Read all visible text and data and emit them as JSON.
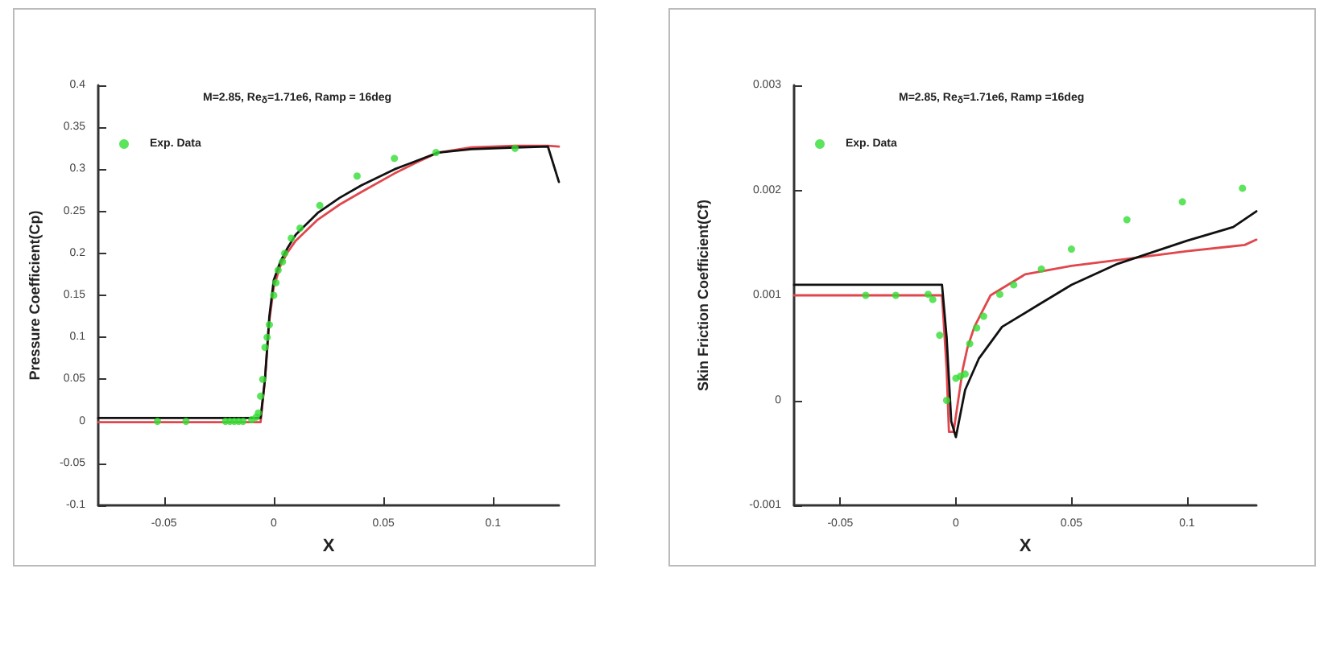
{
  "chart_data": [
    {
      "type": "line",
      "title": "M=2.85, Re$_{δ}$=1.71e6, Ramp = 16deg",
      "xlabel": "X",
      "ylabel": "Pressure Coefficient(Cp)",
      "xlim": [
        -0.08,
        0.13
      ],
      "xticks": [
        -0.05,
        0,
        0.05,
        0.1
      ],
      "ylim": [
        -0.1,
        0.4
      ],
      "yticks": [
        -0.1,
        -0.05,
        0,
        0.05,
        0.1,
        0.15,
        0.2,
        0.25,
        0.3,
        0.35,
        0.4
      ],
      "grid": false,
      "legend": "top left",
      "series": [
        {
          "color": "#e0474c",
          "marker": "none",
          "x": [
            -0.08,
            -0.006,
            -0.004,
            -0.002,
            0,
            0.003,
            0.006,
            0.01,
            0.02,
            0.03,
            0.04,
            0.055,
            0.065,
            0.075,
            0.09,
            0.11,
            0.125,
            0.13
          ],
          "values": [
            -0.001,
            -0.001,
            0.05,
            0.12,
            0.16,
            0.185,
            0.2,
            0.215,
            0.24,
            0.258,
            0.273,
            0.295,
            0.308,
            0.32,
            0.326,
            0.328,
            0.328,
            0.327
          ]
        },
        {
          "color": "#111111",
          "marker": "none",
          "x": [
            -0.08,
            -0.006,
            -0.004,
            -0.002,
            0,
            0.003,
            0.006,
            0.01,
            0.02,
            0.03,
            0.04,
            0.055,
            0.065,
            0.075,
            0.09,
            0.11,
            0.125,
            0.13
          ],
          "values": [
            0.004,
            0.004,
            0.05,
            0.125,
            0.168,
            0.19,
            0.205,
            0.222,
            0.248,
            0.266,
            0.281,
            0.3,
            0.31,
            0.32,
            0.324,
            0.326,
            0.327,
            0.285
          ]
        },
        {
          "type": "scatter",
          "name": "Exp. Data",
          "color": "#33dd33",
          "marker": "circle",
          "x": [
            -0.053,
            -0.04,
            -0.022,
            -0.02,
            -0.018,
            -0.016,
            -0.014,
            -0.01,
            -0.008,
            -0.007,
            -0.006,
            -0.005,
            -0.004,
            -0.003,
            -0.002,
            0,
            0.001,
            0.002,
            0.004,
            0.005,
            0.008,
            0.012,
            0.021,
            0.038,
            0.055,
            0.074,
            0.11
          ],
          "values": [
            0,
            0,
            0,
            0,
            0,
            0,
            0,
            0.002,
            0.005,
            0.01,
            0.03,
            0.05,
            0.088,
            0.1,
            0.115,
            0.15,
            0.165,
            0.18,
            0.19,
            0.2,
            0.218,
            0.23,
            0.257,
            0.292,
            0.313,
            0.32,
            0.325
          ]
        }
      ]
    },
    {
      "type": "line",
      "title": "M=2.85, Re$_{δ}$=1.71e6, Ramp =16deg",
      "xlabel": "X",
      "ylabel": "Skin Friction Coefficient(Cf)",
      "xlim": [
        -0.07,
        0.13
      ],
      "xticks": [
        -0.05,
        0,
        0.05,
        0.1
      ],
      "ylim": [
        -0.001,
        0.003
      ],
      "yticks": [
        -0.001,
        0,
        0.001,
        0.002,
        0.003
      ],
      "grid": false,
      "legend": "top left",
      "series": [
        {
          "color": "#e0474c",
          "marker": "none",
          "x": [
            -0.07,
            -0.006,
            -0.004,
            -0.003,
            -0.001,
            0.001,
            0.003,
            0.005,
            0.008,
            0.015,
            0.03,
            0.05,
            0.075,
            0.1,
            0.125,
            0.13
          ],
          "values": [
            0.001,
            0.001,
            0.0003,
            -0.0003,
            -0.0003,
            0,
            0.0003,
            0.0005,
            0.0007,
            0.001,
            0.0012,
            0.00128,
            0.00135,
            0.00142,
            0.00148,
            0.00153
          ]
        },
        {
          "color": "#111111",
          "marker": "none",
          "x": [
            -0.07,
            -0.006,
            -0.004,
            -0.002,
            0,
            0.004,
            0.01,
            0.02,
            0.035,
            0.05,
            0.07,
            0.1,
            0.12,
            0.13
          ],
          "values": [
            0.0011,
            0.0011,
            0.0006,
            -0.0002,
            -0.00035,
            0.0001,
            0.0004,
            0.0007,
            0.0009,
            0.0011,
            0.0013,
            0.00152,
            0.00165,
            0.0018
          ]
        },
        {
          "type": "scatter",
          "name": "Exp. Data",
          "color": "#33dd33",
          "marker": "circle",
          "x": [
            -0.039,
            -0.026,
            -0.012,
            -0.01,
            -0.007,
            -0.004,
            0,
            0.002,
            0.004,
            0.006,
            0.009,
            0.012,
            0.019,
            0.025,
            0.037,
            0.05,
            0.074,
            0.098,
            0.124
          ],
          "values": [
            0.001,
            0.001,
            0.00101,
            0.00096,
            0.00062,
            0,
            0.00021,
            0.00023,
            0.00025,
            0.00054,
            0.00069,
            0.0008,
            0.00101,
            0.0011,
            0.00125,
            0.00144,
            0.00172,
            0.00189,
            0.00202
          ]
        }
      ]
    }
  ]
}
